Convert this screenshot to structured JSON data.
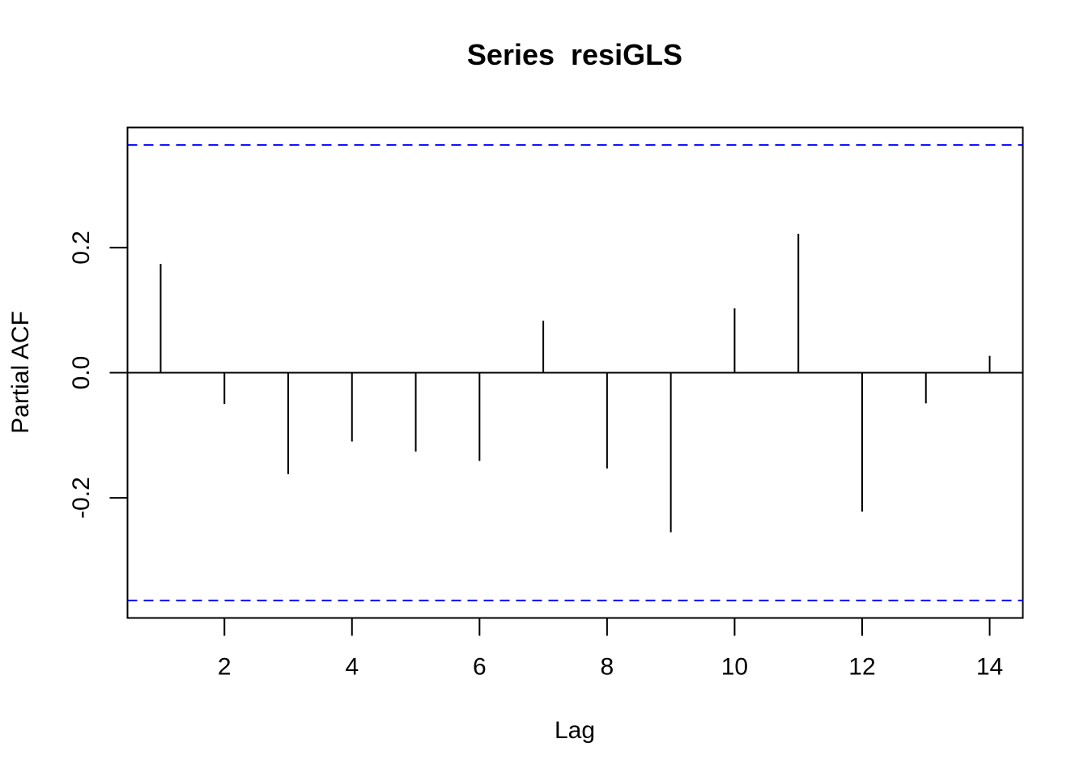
{
  "chart_data": {
    "type": "bar",
    "title": "Series  resiGLS",
    "xlabel": "Lag",
    "ylabel": "Partial ACF",
    "x": [
      1,
      2,
      3,
      4,
      5,
      6,
      7,
      8,
      9,
      10,
      11,
      12,
      13,
      14
    ],
    "values": [
      0.174,
      -0.05,
      -0.162,
      -0.11,
      -0.126,
      -0.141,
      0.083,
      -0.153,
      -0.255,
      0.103,
      0.222,
      -0.222,
      -0.049,
      0.027
    ],
    "x_ticks": [
      "2",
      "4",
      "6",
      "8",
      "10",
      "12",
      "14"
    ],
    "y_ticks": [
      "-0.2",
      "0.0",
      "0.2"
    ],
    "xlim": [
      0.48,
      14.52
    ],
    "ylim": [
      -0.392,
      0.392
    ],
    "confidence_bounds": [
      0.364,
      -0.364
    ],
    "bound_color": "#0000ff",
    "bar_color": "#000000"
  }
}
